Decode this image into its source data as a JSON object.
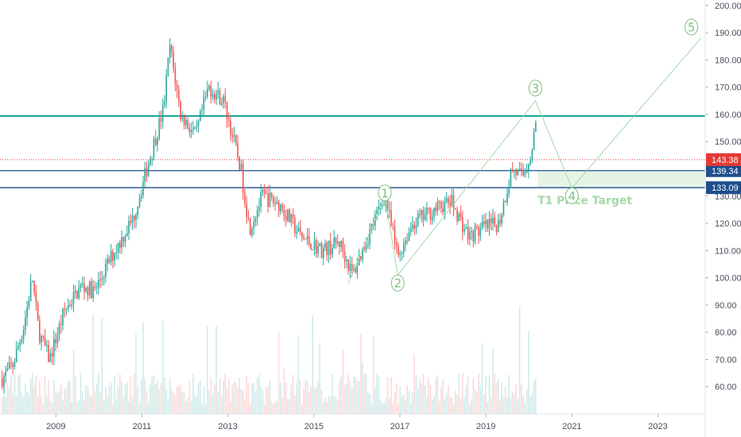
{
  "chart_data": {
    "type": "candlestick",
    "title": "",
    "xlabel": "",
    "ylabel": "",
    "x_ticks": [
      "2009",
      "2011",
      "2013",
      "2015",
      "2017",
      "2019",
      "2021",
      "2023"
    ],
    "y_ticks": [
      "60.00",
      "70.00",
      "80.00",
      "90.00",
      "100.00",
      "110.00",
      "120.00",
      "130.00",
      "140.00",
      "150.00",
      "160.00",
      "170.00",
      "180.00",
      "190.00",
      "200.00"
    ],
    "ylim": [
      50,
      202
    ],
    "xlim": [
      2007.7,
      2024.1
    ],
    "grid": false,
    "colors": {
      "up": "#26a69a",
      "down": "#ef5350",
      "wave": "#7ec27e",
      "resistance": "#17a89a",
      "support": "#1e4e8c",
      "last_price": "#e53935"
    },
    "price_path": [
      {
        "date": "2007.75",
        "price": 63
      },
      {
        "date": "2008.0",
        "price": 68
      },
      {
        "date": "2008.25",
        "price": 82
      },
      {
        "date": "2008.45",
        "price": 100
      },
      {
        "date": "2008.6",
        "price": 80
      },
      {
        "date": "2008.85",
        "price": 70
      },
      {
        "date": "2009.2",
        "price": 88
      },
      {
        "date": "2009.6",
        "price": 97
      },
      {
        "date": "2009.9",
        "price": 95
      },
      {
        "date": "2010.3",
        "price": 108
      },
      {
        "date": "2010.8",
        "price": 122
      },
      {
        "date": "2011.2",
        "price": 145
      },
      {
        "date": "2011.5",
        "price": 162
      },
      {
        "date": "2011.65",
        "price": 185
      },
      {
        "date": "2011.9",
        "price": 160
      },
      {
        "date": "2012.25",
        "price": 152
      },
      {
        "date": "2012.55",
        "price": 170
      },
      {
        "date": "2012.9",
        "price": 165
      },
      {
        "date": "2013.3",
        "price": 140
      },
      {
        "date": "2013.5",
        "price": 118
      },
      {
        "date": "2013.8",
        "price": 130
      },
      {
        "date": "2014.2",
        "price": 127
      },
      {
        "date": "2014.7",
        "price": 115
      },
      {
        "date": "2015.2",
        "price": 110
      },
      {
        "date": "2015.6",
        "price": 113
      },
      {
        "date": "2015.9",
        "price": 101
      },
      {
        "date": "2016.3",
        "price": 117
      },
      {
        "date": "2016.65",
        "price": 130
      },
      {
        "date": "2016.95",
        "price": 108
      },
      {
        "date": "2017.3",
        "price": 120
      },
      {
        "date": "2017.8",
        "price": 125
      },
      {
        "date": "2018.2",
        "price": 128
      },
      {
        "date": "2018.6",
        "price": 115
      },
      {
        "date": "2018.9",
        "price": 118
      },
      {
        "date": "2019.3",
        "price": 120
      },
      {
        "date": "2019.6",
        "price": 140
      },
      {
        "date": "2019.85",
        "price": 137
      },
      {
        "date": "2020.1",
        "price": 148
      },
      {
        "date": "2020.15",
        "price": 159
      },
      {
        "date": "2020.2",
        "price": 143
      }
    ],
    "horizontal_levels": [
      {
        "price": 159.4,
        "style": "resistance"
      },
      {
        "price": 139.34,
        "style": "support",
        "label": "139.34"
      },
      {
        "price": 133.09,
        "style": "support",
        "label": "133.09"
      },
      {
        "price": 143.38,
        "style": "last_price",
        "label": "143.38"
      }
    ],
    "target_zone": {
      "label": "T1 Price Target",
      "from_date": "2020.2",
      "to_date": "2024.1",
      "low": 133.09,
      "high": 139.34
    },
    "elliott_waves": [
      {
        "label": "1",
        "date": "2016.65",
        "price": 130
      },
      {
        "label": "2",
        "date": "2016.95",
        "price": 101
      },
      {
        "label": "3",
        "date": "2020.15",
        "price": 165
      },
      {
        "label": "4",
        "date": "2021.0",
        "price": 133
      },
      {
        "label": "5",
        "date": "2024.0",
        "price": 188
      }
    ],
    "wave_path": [
      {
        "date": "2015.8",
        "price": 98
      },
      {
        "date": "2016.65",
        "price": 130
      },
      {
        "date": "2016.95",
        "price": 101
      },
      {
        "date": "2020.15",
        "price": 165
      },
      {
        "date": "2021.0",
        "price": 133
      },
      {
        "date": "2024.0",
        "price": 188
      }
    ]
  }
}
